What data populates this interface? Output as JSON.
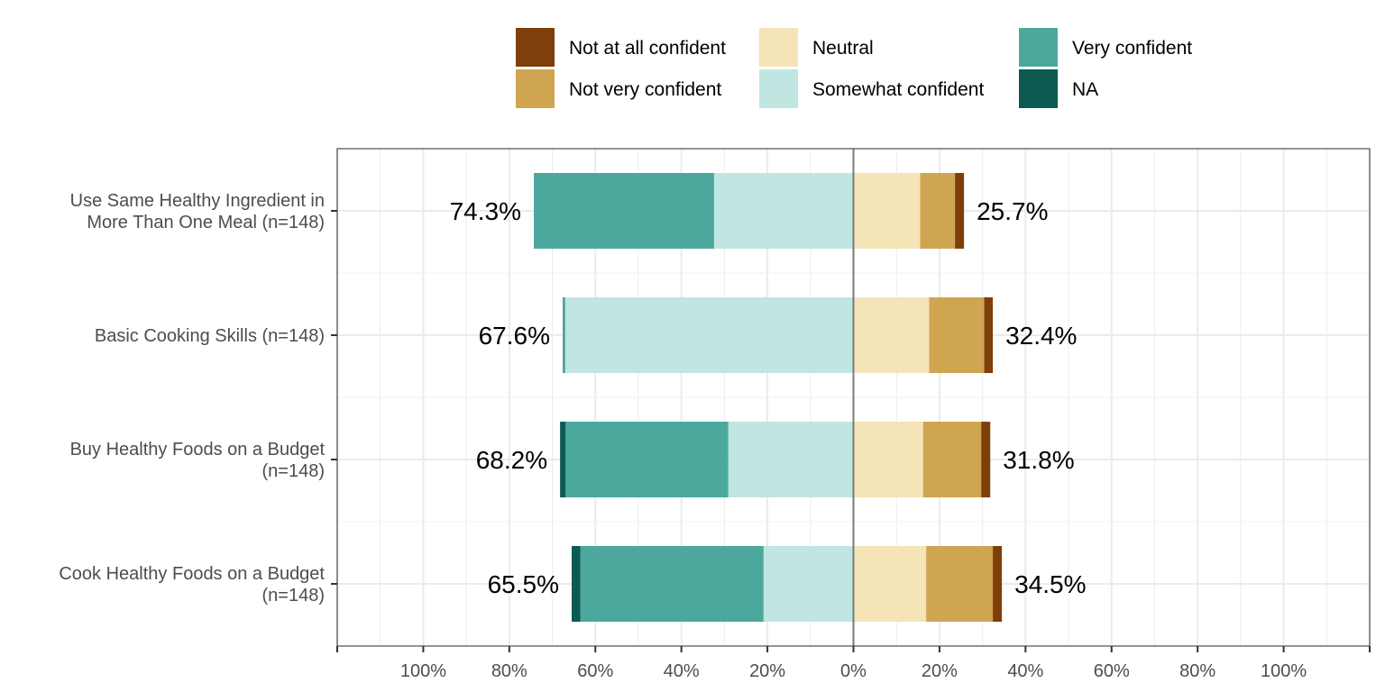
{
  "chart_data": {
    "type": "bar",
    "orientation": "horizontal-diverging",
    "legend": {
      "placement": "top",
      "entries": [
        {
          "key": "not_at_all",
          "label": "Not at all confident",
          "color": "#7f3f0a"
        },
        {
          "key": "not_very",
          "label": "Not very confident",
          "color": "#cfa552"
        },
        {
          "key": "neutral",
          "label": "Neutral",
          "color": "#f5e4b8"
        },
        {
          "key": "somewhat",
          "label": "Somewhat confident",
          "color": "#bfe6e1"
        },
        {
          "key": "very",
          "label": "Very confident",
          "color": "#4ca89d"
        },
        {
          "key": "na",
          "label": "NA",
          "color": "#0c5a50"
        }
      ]
    },
    "categories": [
      "Use Same Healthy Ingredient in\nMore Than One Meal (n=148)",
      "Basic Cooking Skills (n=148)",
      "Buy Healthy Foods on a Budget\n(n=148)",
      "Cook Healthy Foods on a Budget\n(n=148)"
    ],
    "left_series": [
      {
        "key": "somewhat",
        "values": [
          32.4,
          67.0,
          29.1,
          20.9
        ]
      },
      {
        "key": "very",
        "values": [
          41.9,
          0.6,
          37.8,
          42.6
        ]
      },
      {
        "key": "na",
        "values": [
          0.0,
          0.0,
          1.3,
          2.0
        ]
      }
    ],
    "right_series": [
      {
        "key": "neutral",
        "values": [
          15.5,
          17.6,
          16.2,
          16.9
        ]
      },
      {
        "key": "not_very",
        "values": [
          8.1,
          12.8,
          13.5,
          15.5
        ]
      },
      {
        "key": "not_at_all",
        "values": [
          2.1,
          2.0,
          2.1,
          2.1
        ]
      }
    ],
    "left_totals": [
      "74.3%",
      "67.6%",
      "68.2%",
      "65.5%"
    ],
    "right_totals": [
      "25.7%",
      "32.4%",
      "31.8%",
      "34.5%"
    ],
    "xlim": [
      -120,
      120
    ],
    "x_ticks": [
      -100,
      -80,
      -60,
      -40,
      -20,
      0,
      20,
      40,
      60,
      80,
      100
    ],
    "x_tick_labels": [
      "100%",
      "80%",
      "60%",
      "40%",
      "20%",
      "0%",
      "20%",
      "40%",
      "60%",
      "80%",
      "100%"
    ],
    "grid": true
  }
}
